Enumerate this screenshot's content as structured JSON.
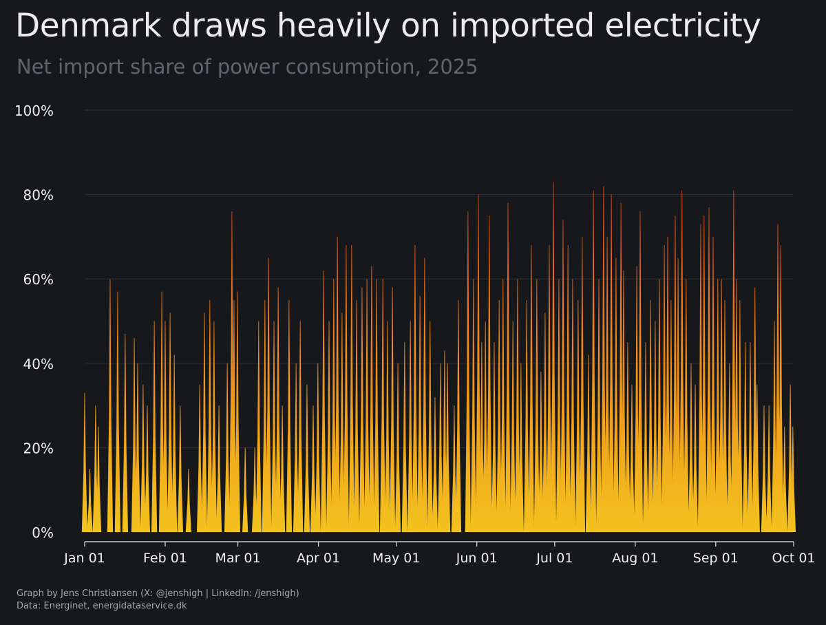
{
  "chart_data": {
    "type": "area",
    "title": "Denmark draws heavily on imported electricity",
    "subtitle": "Net import share of power consumption, 2025",
    "xlabel": "",
    "ylabel": "",
    "x_unit": "days since Jan 01, 2025",
    "xlim": [
      0,
      273
    ],
    "ylim": [
      0,
      100
    ],
    "grid": true,
    "y_ticks": [
      {
        "value": 0,
        "label": "0%"
      },
      {
        "value": 20,
        "label": "20%"
      },
      {
        "value": 40,
        "label": "40%"
      },
      {
        "value": 60,
        "label": "60%"
      },
      {
        "value": 80,
        "label": "80%"
      },
      {
        "value": 100,
        "label": "100%"
      }
    ],
    "x_ticks": [
      {
        "value": 0,
        "label": "Jan 01"
      },
      {
        "value": 31,
        "label": "Feb 01"
      },
      {
        "value": 59,
        "label": "Mar 01"
      },
      {
        "value": 90,
        "label": "Apr 01"
      },
      {
        "value": 120,
        "label": "May 01"
      },
      {
        "value": 151,
        "label": "Jun 01"
      },
      {
        "value": 181,
        "label": "Jul 01"
      },
      {
        "value": 212,
        "label": "Aug 01"
      },
      {
        "value": 243,
        "label": "Sep 01"
      },
      {
        "value": 273,
        "label": "Oct 01"
      }
    ],
    "gradient_colors": {
      "low": "#f2c21f",
      "mid": "#f08818",
      "high": "#e2401b"
    },
    "series": [
      {
        "name": "Net import share (%)",
        "peaks": [
          [
            0,
            33
          ],
          [
            2,
            15
          ],
          [
            4.2,
            30
          ],
          [
            5.3,
            25
          ],
          [
            9.8,
            60
          ],
          [
            12.7,
            57
          ],
          [
            15.6,
            47
          ],
          [
            19.1,
            46
          ],
          [
            20.4,
            40
          ],
          [
            22.5,
            35
          ],
          [
            24.1,
            30
          ],
          [
            26.8,
            50
          ],
          [
            29.7,
            57
          ],
          [
            31,
            50
          ],
          [
            32.9,
            52
          ],
          [
            34.5,
            42
          ],
          [
            36.8,
            30
          ],
          [
            40,
            15
          ],
          [
            44.3,
            35
          ],
          [
            46.1,
            52
          ],
          [
            48.2,
            55
          ],
          [
            49.8,
            50
          ],
          [
            51.7,
            30
          ],
          [
            54.9,
            40
          ],
          [
            56.7,
            76
          ],
          [
            57.5,
            55
          ],
          [
            58.8,
            57
          ],
          [
            61.8,
            20
          ],
          [
            65.5,
            20
          ],
          [
            67,
            50
          ],
          [
            69.4,
            55
          ],
          [
            70.8,
            65
          ],
          [
            72.9,
            50
          ],
          [
            74.5,
            58
          ],
          [
            76.1,
            30
          ],
          [
            78.7,
            55
          ],
          [
            81.4,
            40
          ],
          [
            83,
            50
          ],
          [
            85.6,
            35
          ],
          [
            88,
            30
          ],
          [
            89.8,
            40
          ],
          [
            92,
            62
          ],
          [
            94.1,
            50
          ],
          [
            95.9,
            60
          ],
          [
            97.3,
            70
          ],
          [
            99.1,
            52
          ],
          [
            100.7,
            68
          ],
          [
            102.8,
            68
          ],
          [
            104.7,
            55
          ],
          [
            106.8,
            58
          ],
          [
            108.7,
            60
          ],
          [
            110.5,
            63
          ],
          [
            112.4,
            60
          ],
          [
            114.8,
            60
          ],
          [
            116.6,
            50
          ],
          [
            118.5,
            58
          ],
          [
            120.6,
            40
          ],
          [
            123.2,
            45
          ],
          [
            125.4,
            50
          ],
          [
            127.2,
            68
          ],
          [
            129.1,
            56
          ],
          [
            130.9,
            65
          ],
          [
            133,
            50
          ],
          [
            134.9,
            32
          ],
          [
            137,
            40
          ],
          [
            138.6,
            43
          ],
          [
            139.7,
            40
          ],
          [
            142.3,
            30
          ],
          [
            143.9,
            55
          ],
          [
            147.6,
            76
          ],
          [
            149.7,
            60
          ],
          [
            151.6,
            80
          ],
          [
            152.9,
            45
          ],
          [
            154.3,
            50
          ],
          [
            155.8,
            75
          ],
          [
            157.7,
            45
          ],
          [
            159.6,
            55
          ],
          [
            161.1,
            60
          ],
          [
            163,
            78
          ],
          [
            164.9,
            50
          ],
          [
            166.7,
            60
          ],
          [
            168,
            40
          ],
          [
            170.2,
            55
          ],
          [
            172,
            68
          ],
          [
            174.1,
            60
          ],
          [
            175.7,
            38
          ],
          [
            177.3,
            52
          ],
          [
            178.9,
            68
          ],
          [
            180.5,
            83
          ],
          [
            182.6,
            60
          ],
          [
            184.2,
            74
          ],
          [
            186.1,
            68
          ],
          [
            187.9,
            60
          ],
          [
            190,
            55
          ],
          [
            191.6,
            70
          ],
          [
            194,
            42
          ],
          [
            195.9,
            81
          ],
          [
            198,
            60
          ],
          [
            199.8,
            82
          ],
          [
            201.2,
            70
          ],
          [
            202.8,
            80
          ],
          [
            204.6,
            65
          ],
          [
            206.5,
            78
          ],
          [
            207.5,
            62
          ],
          [
            209.1,
            45
          ],
          [
            210.7,
            35
          ],
          [
            212.6,
            63
          ],
          [
            213.9,
            76
          ],
          [
            216,
            45
          ],
          [
            217.9,
            55
          ],
          [
            219.7,
            50
          ],
          [
            221.3,
            60
          ],
          [
            223.2,
            68
          ],
          [
            224.5,
            70
          ],
          [
            225.8,
            55
          ],
          [
            227.4,
            75
          ],
          [
            228.5,
            65
          ],
          [
            230,
            81
          ],
          [
            231.6,
            60
          ],
          [
            233.5,
            40
          ],
          [
            235.1,
            35
          ],
          [
            237.2,
            73
          ],
          [
            238.5,
            75
          ],
          [
            240.4,
            77
          ],
          [
            242,
            70
          ],
          [
            243.8,
            60
          ],
          [
            245.2,
            60
          ],
          [
            246.5,
            55
          ],
          [
            248.3,
            40
          ],
          [
            249.9,
            81
          ],
          [
            251,
            60
          ],
          [
            252.3,
            55
          ],
          [
            254.4,
            45
          ],
          [
            256.3,
            45
          ],
          [
            258.1,
            58
          ],
          [
            258.9,
            35
          ],
          [
            261.6,
            30
          ],
          [
            263.5,
            30
          ],
          [
            265.6,
            50
          ],
          [
            266.9,
            73
          ],
          [
            268,
            68
          ],
          [
            269.5,
            25
          ],
          [
            271.7,
            35
          ],
          [
            272.7,
            25
          ]
        ]
      }
    ]
  },
  "footer": {
    "credit": "Graph by Jens Christiansen (X: @jenshigh | LinkedIn: /jenshigh)",
    "source": "Data: Energinet, energidataservice.dk"
  }
}
